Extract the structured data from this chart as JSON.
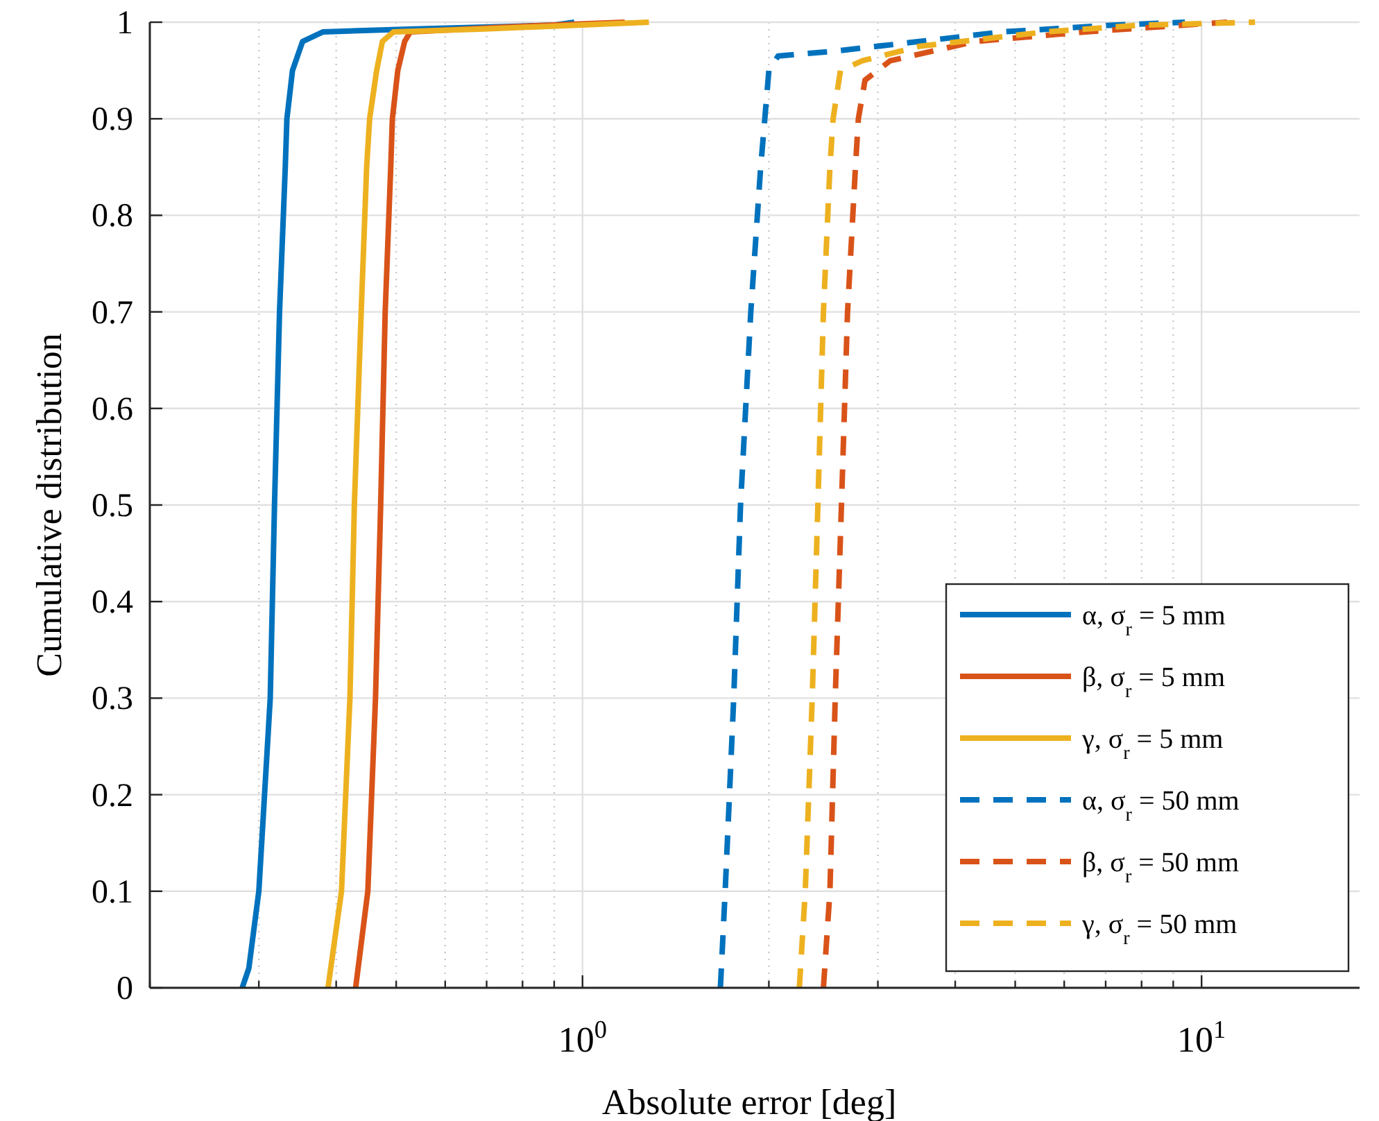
{
  "chart_data": {
    "type": "line",
    "xlabel": "Absolute error [deg]",
    "ylabel": "Cumulative distribution",
    "log": "x",
    "xlim": [
      0.2,
      18
    ],
    "ylim": [
      0,
      1
    ],
    "xticks": [
      {
        "value": 0.2,
        "label": null
      },
      {
        "value": 0.3,
        "label": null
      },
      {
        "value": 0.4,
        "label": null
      },
      {
        "value": 0.5,
        "label": null
      },
      {
        "value": 0.6,
        "label": null
      },
      {
        "value": 0.7,
        "label": null
      },
      {
        "value": 0.8,
        "label": null
      },
      {
        "value": 0.9,
        "label": null
      },
      {
        "value": 1,
        "label": "10$^{0}$"
      },
      {
        "value": 2,
        "label": null
      },
      {
        "value": 3,
        "label": null
      },
      {
        "value": 4,
        "label": null
      },
      {
        "value": 5,
        "label": null
      },
      {
        "value": 6,
        "label": null
      },
      {
        "value": 7,
        "label": null
      },
      {
        "value": 8,
        "label": null
      },
      {
        "value": 9,
        "label": null
      },
      {
        "value": 10,
        "label": "10$^{1}$"
      }
    ],
    "yticks": [
      0,
      0.1,
      0.2,
      0.3,
      0.4,
      0.5,
      0.6,
      0.7,
      0.8,
      0.9,
      1
    ],
    "grid": true,
    "legend": "bottom right",
    "series": [
      {
        "name": "α, σ$_{r}$ = 5 mm",
        "color": "#0072bd",
        "line_style": "solid",
        "x": [
          0.282,
          0.289,
          0.3,
          0.313,
          0.318,
          0.324,
          0.331,
          0.333,
          0.34,
          0.353,
          0.381,
          0.535,
          0.9,
          0.97
        ],
        "values": [
          0,
          0.02,
          0.1,
          0.3,
          0.5,
          0.7,
          0.85,
          0.9,
          0.95,
          0.98,
          0.99,
          0.993,
          0.997,
          1
        ]
      },
      {
        "name": "β, σ$_{r}$ = 5 mm",
        "color": "#d95319",
        "line_style": "solid",
        "x": [
          0.43,
          0.45,
          0.463,
          0.472,
          0.48,
          0.49,
          0.493,
          0.503,
          0.516,
          0.527,
          0.75,
          1.17
        ],
        "values": [
          0,
          0.1,
          0.3,
          0.5,
          0.7,
          0.85,
          0.9,
          0.95,
          0.98,
          0.99,
          0.995,
          1
        ]
      },
      {
        "name": "γ, σ$_{r}$ = 5 mm",
        "color": "#edb120",
        "line_style": "solid",
        "x": [
          0.388,
          0.408,
          0.421,
          0.428,
          0.439,
          0.448,
          0.453,
          0.465,
          0.475,
          0.495,
          0.695,
          1.28
        ],
        "values": [
          0,
          0.1,
          0.3,
          0.5,
          0.7,
          0.85,
          0.9,
          0.95,
          0.98,
          0.99,
          0.993,
          1
        ]
      },
      {
        "name": "α, σ$_{r}$ = 50 mm",
        "color": "#0072bd",
        "line_style": "dashed",
        "x": [
          1.67,
          1.7,
          1.755,
          1.8,
          1.87,
          1.94,
          1.97,
          2.0,
          2.07,
          2.55,
          3.5,
          4.77,
          7.2,
          9.4
        ],
        "values": [
          0,
          0.1,
          0.3,
          0.5,
          0.7,
          0.85,
          0.9,
          0.95,
          0.965,
          0.97,
          0.98,
          0.99,
          0.997,
          1
        ]
      },
      {
        "name": "β, σ$_{r}$ = 50 mm",
        "color": "#d95319",
        "line_style": "dashed",
        "x": [
          2.45,
          2.51,
          2.56,
          2.62,
          2.68,
          2.76,
          2.79,
          2.86,
          3.14,
          4.3,
          6.5,
          11.0
        ],
        "values": [
          0,
          0.1,
          0.3,
          0.5,
          0.7,
          0.85,
          0.9,
          0.94,
          0.96,
          0.98,
          0.99,
          1
        ]
      },
      {
        "name": "γ, σ$_{r}$ = 50 mm",
        "color": "#edb120",
        "line_style": "dashed",
        "x": [
          2.24,
          2.29,
          2.35,
          2.4,
          2.45,
          2.51,
          2.54,
          2.61,
          2.83,
          3.5,
          5.6,
          8.0,
          12.2
        ],
        "values": [
          0,
          0.1,
          0.3,
          0.5,
          0.7,
          0.85,
          0.9,
          0.95,
          0.96,
          0.975,
          0.99,
          0.997,
          1
        ]
      }
    ]
  }
}
